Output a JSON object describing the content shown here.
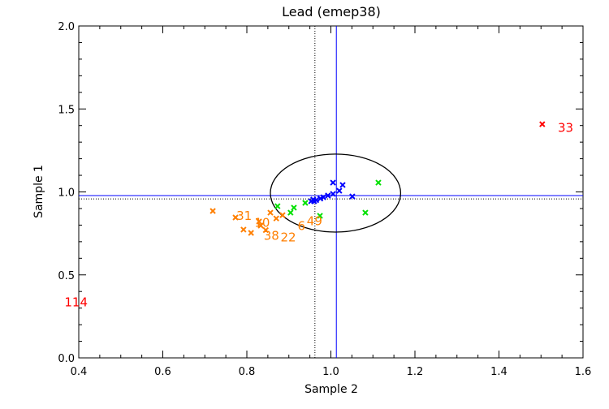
{
  "chart_data": {
    "type": "scatter",
    "title": "Lead (emep38)",
    "xlabel": "Sample 2",
    "ylabel": "Sample 1",
    "xlim": [
      0.4,
      1.6
    ],
    "ylim": [
      0.0,
      2.0
    ],
    "xticks": [
      "0.4",
      "0.6",
      "0.8",
      "1.0",
      "1.2",
      "1.4",
      "1.6"
    ],
    "yticks": [
      "0.0",
      "0.5",
      "1.0",
      "1.5",
      "2.0"
    ],
    "ref_lines": {
      "vertical_dotted": 0.962,
      "vertical_solid": 1.013,
      "horizontal_solid": 0.978,
      "horizontal_dotted": 0.958
    },
    "ellipse": {
      "cx": 1.011,
      "cy": 0.993,
      "rx": 0.155,
      "ry": 0.235
    },
    "series": [
      {
        "name": "orange",
        "color": "#ff7f00",
        "points": [
          [
            0.719,
            0.885
          ],
          [
            0.773,
            0.846
          ],
          [
            0.792,
            0.773
          ],
          [
            0.81,
            0.753
          ],
          [
            0.829,
            0.822
          ],
          [
            0.833,
            0.797
          ],
          [
            0.856,
            0.875
          ],
          [
            0.885,
            0.86
          ],
          [
            0.845,
            0.77
          ],
          [
            0.87,
            0.84
          ]
        ]
      },
      {
        "name": "green",
        "color": "#00e000",
        "points": [
          [
            0.873,
            0.914
          ],
          [
            0.904,
            0.875
          ],
          [
            0.912,
            0.905
          ],
          [
            0.939,
            0.934
          ],
          [
            0.974,
            0.856
          ],
          [
            1.113,
            1.056
          ],
          [
            1.082,
            0.875
          ]
        ]
      },
      {
        "name": "blue",
        "color": "#0000ff",
        "points": [
          [
            0.953,
            0.944
          ],
          [
            0.958,
            0.954
          ],
          [
            0.965,
            0.95
          ],
          [
            0.982,
            0.968
          ],
          [
            0.993,
            0.978
          ],
          [
            1.005,
            0.988
          ],
          [
            1.005,
            1.056
          ],
          [
            1.028,
            1.042
          ],
          [
            1.02,
            1.007
          ],
          [
            1.051,
            0.973
          ],
          [
            0.975,
            0.96
          ],
          [
            0.96,
            0.944
          ]
        ]
      },
      {
        "name": "red",
        "color": "#ff0000",
        "points": [
          [
            1.503,
            1.408
          ]
        ]
      }
    ],
    "labels": [
      {
        "text": "31",
        "x": 0.775,
        "y": 0.86,
        "color": "#ff7f00"
      },
      {
        "text": "10",
        "x": 0.818,
        "y": 0.82,
        "color": "#ff7f00"
      },
      {
        "text": "38",
        "x": 0.84,
        "y": 0.74,
        "color": "#ff7f00"
      },
      {
        "text": "22",
        "x": 0.857,
        "y": 0.73,
        "color": "#ff7f00"
      },
      {
        "text": "6",
        "x": 0.888,
        "y": 0.8,
        "color": "#ff7f00"
      },
      {
        "text": "49",
        "x": 0.902,
        "y": 0.83,
        "color": "#ff7f00"
      },
      {
        "text": "33",
        "x": 1.54,
        "y": 1.39,
        "color": "#ff0000"
      },
      {
        "text": "114",
        "x": 0.366,
        "y": 0.34,
        "color": "#ff0000"
      }
    ]
  }
}
